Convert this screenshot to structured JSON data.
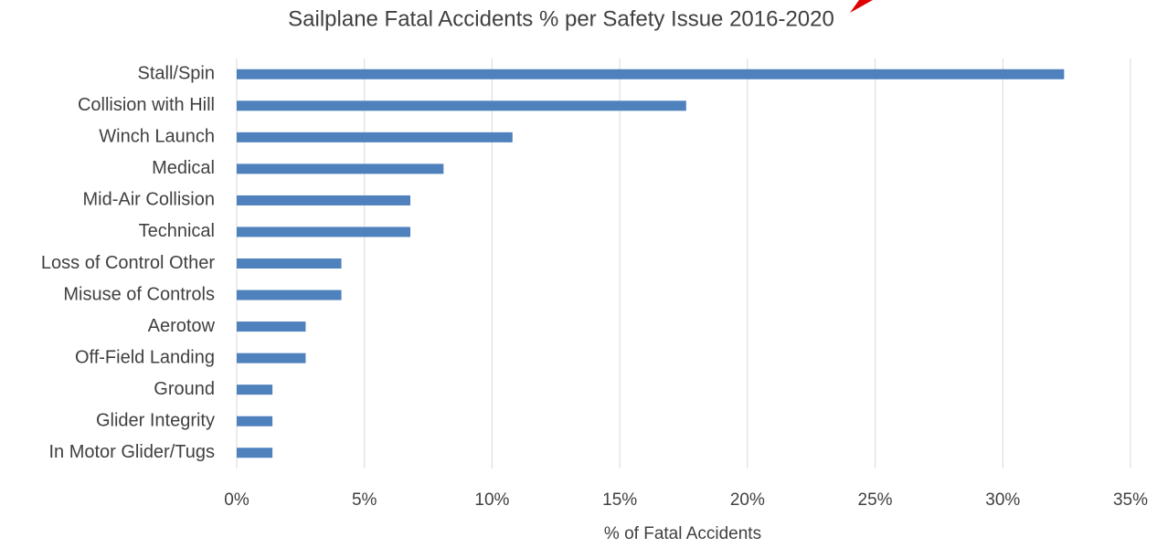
{
  "chart_data": {
    "type": "barh",
    "title": "Sailplane Fatal Accidents  % per Safety Issue 2016-2020",
    "x_label": "% of Fatal Accidents",
    "categories": [
      "Stall/Spin",
      "Collision with Hill",
      "Winch Launch",
      "Medical",
      "Mid-Air Collision",
      "Technical",
      "Loss of Control Other",
      "Misuse of Controls",
      "Aerotow",
      "Off-Field Landing",
      "Ground",
      "Glider Integrity",
      "In Motor Glider/Tugs"
    ],
    "values": [
      32.4,
      17.6,
      10.8,
      8.1,
      6.8,
      6.8,
      4.1,
      4.1,
      2.7,
      2.7,
      1.4,
      1.4,
      1.4
    ],
    "color": "#4f81bd",
    "xlim": [
      0,
      35
    ],
    "xticks": [
      {
        "value": 0,
        "label": "0%"
      },
      {
        "value": 5,
        "label": "5%"
      },
      {
        "value": 10,
        "label": "10%"
      },
      {
        "value": 15,
        "label": "15%"
      },
      {
        "value": 20,
        "label": "20%"
      },
      {
        "value": 25,
        "label": "25%"
      },
      {
        "value": 30,
        "label": "30%"
      },
      {
        "value": 35,
        "label": "35%"
      }
    ],
    "grid": true
  }
}
